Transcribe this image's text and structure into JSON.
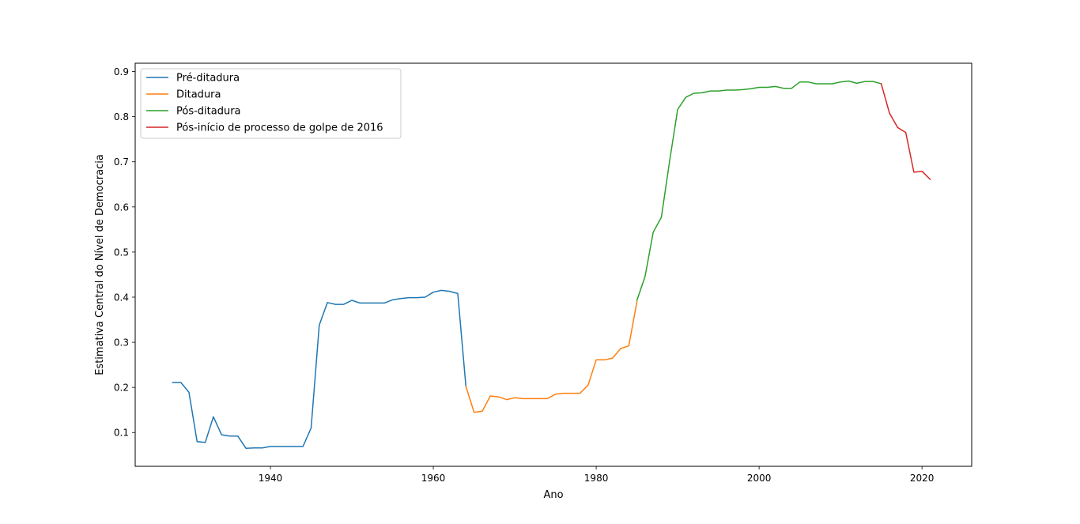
{
  "chart_data": {
    "type": "line",
    "title": "",
    "xlabel": "Ano",
    "ylabel": "Estimativa Central do Nível de Democracia",
    "xlim": [
      1923.4,
      2026.1
    ],
    "ylim": [
      0.0251,
      0.9185
    ],
    "xticks": [
      1940,
      1960,
      1980,
      2000,
      2020
    ],
    "yticks": [
      0.1,
      0.2,
      0.3,
      0.4,
      0.5,
      0.6,
      0.7,
      0.8,
      0.9
    ],
    "grid": false,
    "legend_position": "top-left",
    "series": [
      {
        "name": "Pré-ditadura",
        "color": "#1f77b4",
        "points": [
          [
            1928,
            0.211
          ],
          [
            1929,
            0.211
          ],
          [
            1930,
            0.189
          ],
          [
            1931,
            0.08
          ],
          [
            1932,
            0.078
          ],
          [
            1933,
            0.135
          ],
          [
            1934,
            0.095
          ],
          [
            1935,
            0.092
          ],
          [
            1936,
            0.092
          ],
          [
            1937,
            0.065
          ],
          [
            1938,
            0.066
          ],
          [
            1939,
            0.066
          ],
          [
            1940,
            0.069
          ],
          [
            1941,
            0.069
          ],
          [
            1942,
            0.069
          ],
          [
            1943,
            0.069
          ],
          [
            1944,
            0.069
          ],
          [
            1945,
            0.11
          ],
          [
            1946,
            0.338
          ],
          [
            1947,
            0.388
          ],
          [
            1948,
            0.384
          ],
          [
            1949,
            0.384
          ],
          [
            1950,
            0.393
          ],
          [
            1951,
            0.387
          ],
          [
            1952,
            0.387
          ],
          [
            1953,
            0.387
          ],
          [
            1954,
            0.387
          ],
          [
            1955,
            0.394
          ],
          [
            1956,
            0.397
          ],
          [
            1957,
            0.399
          ],
          [
            1958,
            0.399
          ],
          [
            1959,
            0.4
          ],
          [
            1960,
            0.411
          ],
          [
            1961,
            0.415
          ],
          [
            1962,
            0.413
          ],
          [
            1963,
            0.408
          ],
          [
            1964,
            0.202
          ]
        ]
      },
      {
        "name": "Ditadura",
        "color": "#ff7f0e",
        "points": [
          [
            1964,
            0.202
          ],
          [
            1965,
            0.145
          ],
          [
            1966,
            0.147
          ],
          [
            1967,
            0.181
          ],
          [
            1968,
            0.179
          ],
          [
            1969,
            0.173
          ],
          [
            1970,
            0.177
          ],
          [
            1971,
            0.175
          ],
          [
            1972,
            0.175
          ],
          [
            1973,
            0.175
          ],
          [
            1974,
            0.175
          ],
          [
            1975,
            0.185
          ],
          [
            1976,
            0.187
          ],
          [
            1977,
            0.187
          ],
          [
            1978,
            0.187
          ],
          [
            1979,
            0.205
          ],
          [
            1980,
            0.261
          ],
          [
            1981,
            0.261
          ],
          [
            1982,
            0.265
          ],
          [
            1983,
            0.286
          ],
          [
            1984,
            0.292
          ],
          [
            1985,
            0.39
          ]
        ]
      },
      {
        "name": "Pós-ditadura",
        "color": "#2ca02c",
        "points": [
          [
            1985,
            0.393
          ],
          [
            1986,
            0.446
          ],
          [
            1987,
            0.544
          ],
          [
            1988,
            0.577
          ],
          [
            1989,
            0.7
          ],
          [
            1990,
            0.816
          ],
          [
            1991,
            0.843
          ],
          [
            1992,
            0.852
          ],
          [
            1993,
            0.853
          ],
          [
            1994,
            0.857
          ],
          [
            1995,
            0.857
          ],
          [
            1996,
            0.859
          ],
          [
            1997,
            0.859
          ],
          [
            1998,
            0.86
          ],
          [
            1999,
            0.862
          ],
          [
            2000,
            0.865
          ],
          [
            2001,
            0.865
          ],
          [
            2002,
            0.867
          ],
          [
            2003,
            0.863
          ],
          [
            2004,
            0.863
          ],
          [
            2005,
            0.877
          ],
          [
            2006,
            0.877
          ],
          [
            2007,
            0.873
          ],
          [
            2008,
            0.873
          ],
          [
            2009,
            0.873
          ],
          [
            2010,
            0.877
          ],
          [
            2011,
            0.879
          ],
          [
            2012,
            0.874
          ],
          [
            2013,
            0.878
          ],
          [
            2014,
            0.878
          ],
          [
            2015,
            0.873
          ]
        ]
      },
      {
        "name": "Pós-início de processo de golpe de 2016",
        "color": "#d62728",
        "points": [
          [
            2015,
            0.873
          ],
          [
            2016,
            0.808
          ],
          [
            2017,
            0.776
          ],
          [
            2018,
            0.765
          ],
          [
            2019,
            0.677
          ],
          [
            2020,
            0.679
          ],
          [
            2021,
            0.661
          ]
        ]
      }
    ]
  }
}
